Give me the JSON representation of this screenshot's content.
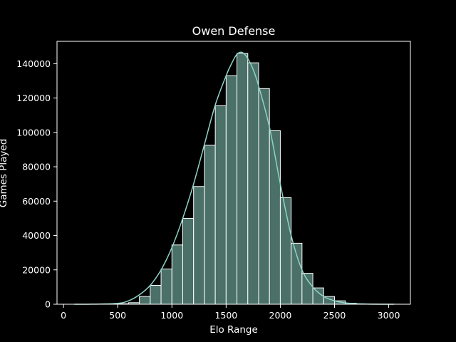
{
  "chart_data": {
    "type": "bar",
    "title": "Owen Defense",
    "xlabel": "Elo Range",
    "ylabel": "Games Played",
    "xlim": [
      -60,
      3200
    ],
    "ylim": [
      0,
      153000
    ],
    "xticks": [
      0,
      500,
      1000,
      1500,
      2000,
      2500,
      3000
    ],
    "yticks": [
      0,
      20000,
      40000,
      60000,
      80000,
      100000,
      120000,
      140000
    ],
    "grid": false,
    "legend": "none",
    "bin_width": 100,
    "bins": [
      {
        "x0": 100,
        "x1": 200,
        "value": 0
      },
      {
        "x0": 200,
        "x1": 300,
        "value": 0
      },
      {
        "x0": 300,
        "x1": 400,
        "value": 50
      },
      {
        "x0": 400,
        "x1": 500,
        "value": 150
      },
      {
        "x0": 500,
        "x1": 600,
        "value": 300
      },
      {
        "x0": 600,
        "x1": 700,
        "value": 900
      },
      {
        "x0": 700,
        "x1": 800,
        "value": 4500
      },
      {
        "x0": 800,
        "x1": 900,
        "value": 11000
      },
      {
        "x0": 900,
        "x1": 1000,
        "value": 20500
      },
      {
        "x0": 1000,
        "x1": 1100,
        "value": 34500
      },
      {
        "x0": 1100,
        "x1": 1200,
        "value": 50000
      },
      {
        "x0": 1200,
        "x1": 1300,
        "value": 68500
      },
      {
        "x0": 1300,
        "x1": 1400,
        "value": 92500
      },
      {
        "x0": 1400,
        "x1": 1500,
        "value": 115500
      },
      {
        "x0": 1500,
        "x1": 1600,
        "value": 133000
      },
      {
        "x0": 1600,
        "x1": 1700,
        "value": 146000
      },
      {
        "x0": 1700,
        "x1": 1800,
        "value": 140500
      },
      {
        "x0": 1800,
        "x1": 1900,
        "value": 125500
      },
      {
        "x0": 1900,
        "x1": 2000,
        "value": 101000
      },
      {
        "x0": 2000,
        "x1": 2100,
        "value": 62000
      },
      {
        "x0": 2100,
        "x1": 2200,
        "value": 35500
      },
      {
        "x0": 2200,
        "x1": 2300,
        "value": 18000
      },
      {
        "x0": 2300,
        "x1": 2400,
        "value": 9500
      },
      {
        "x0": 2400,
        "x1": 2500,
        "value": 4500
      },
      {
        "x0": 2500,
        "x1": 2600,
        "value": 2000
      },
      {
        "x0": 2600,
        "x1": 2700,
        "value": 600
      },
      {
        "x0": 2700,
        "x1": 2800,
        "value": 200
      },
      {
        "x0": 2800,
        "x1": 2900,
        "value": 100
      },
      {
        "x0": 2900,
        "x1": 3000,
        "value": 50
      },
      {
        "x0": 3000,
        "x1": 3100,
        "value": 20
      }
    ],
    "kde": {
      "x": [
        100,
        300,
        500,
        600,
        700,
        800,
        900,
        1000,
        1100,
        1200,
        1300,
        1400,
        1500,
        1550,
        1600,
        1650,
        1700,
        1750,
        1800,
        1900,
        2000,
        2100,
        2200,
        2300,
        2400,
        2500,
        2600,
        2800,
        3050
      ],
      "y": [
        0,
        50,
        500,
        2000,
        5500,
        11000,
        20000,
        33000,
        50000,
        70000,
        93000,
        116000,
        133000,
        140000,
        145500,
        146500,
        143000,
        136500,
        127000,
        103000,
        70000,
        40000,
        20000,
        10000,
        4500,
        2000,
        800,
        100,
        0
      ]
    },
    "colors": {
      "background": "#000000",
      "text": "#ffffff",
      "bar_fill": "#4a7068",
      "bar_edge": "#ffffff",
      "kde_line": "#8dd3c7"
    }
  }
}
